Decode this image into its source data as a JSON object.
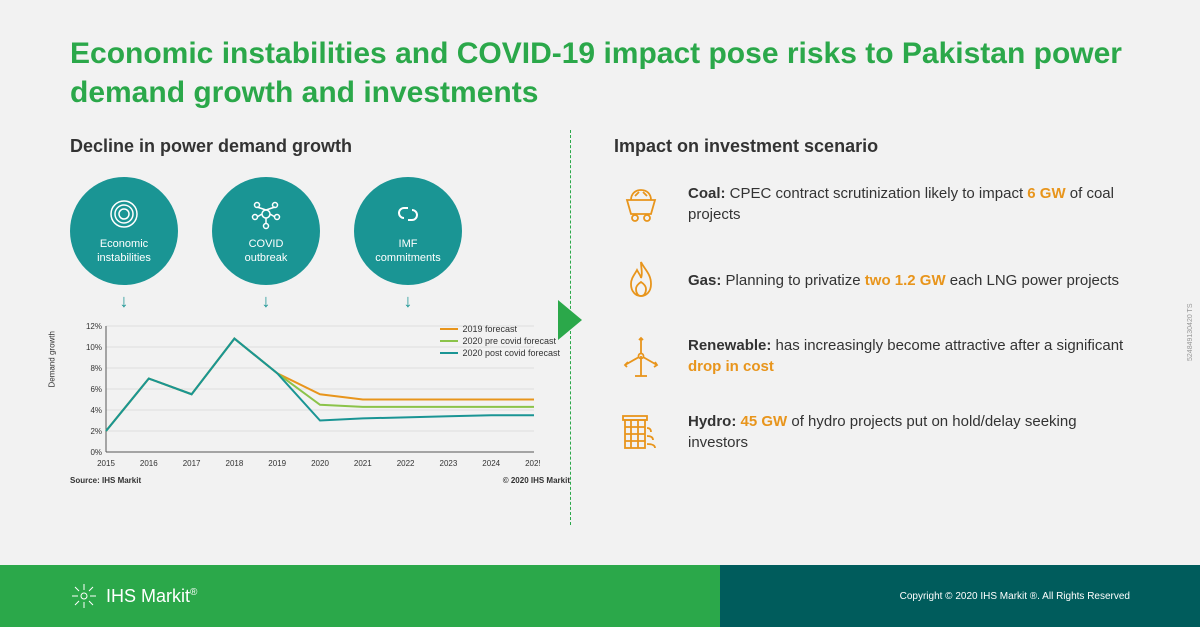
{
  "title": "Economic instabilities and COVID-19 impact pose risks to Pakistan power demand growth and investments",
  "left": {
    "subtitle": "Decline in power demand growth",
    "circles": [
      {
        "label": "Economic\ninstabilities"
      },
      {
        "label": "COVID\noutbreak"
      },
      {
        "label": "IMF\ncommitments"
      }
    ],
    "chart": {
      "type": "line",
      "ylabel": "Demand growth",
      "xlabels": [
        "2015",
        "2016",
        "2017",
        "2018",
        "2019",
        "2020",
        "2021",
        "2022",
        "2023",
        "2024",
        "2025"
      ],
      "ylabels": [
        "0%",
        "2%",
        "4%",
        "6%",
        "8%",
        "10%",
        "12%"
      ],
      "ylim": [
        0,
        12
      ],
      "series": [
        {
          "name": "2019 forecast",
          "color": "#e8951c",
          "width": 2,
          "data": [
            2,
            7,
            5.5,
            10.8,
            7.5,
            5.5,
            5,
            5,
            5,
            5,
            5
          ]
        },
        {
          "name": "2020 pre covid forecast",
          "color": "#8bc34a",
          "width": 2,
          "data": [
            2,
            7,
            5.5,
            10.8,
            7.5,
            4.5,
            4.3,
            4.3,
            4.3,
            4.3,
            4.3
          ]
        },
        {
          "name": "2020 post covid forecast",
          "color": "#1a9594",
          "width": 2,
          "data": [
            2,
            7,
            5.5,
            10.8,
            7.5,
            3,
            3.2,
            3.3,
            3.4,
            3.5,
            3.5
          ]
        }
      ],
      "source_left": "Source: IHS Markit",
      "source_right": "© 2020 IHS Markit",
      "grid_color": "#cccccc",
      "axis_color": "#555555",
      "label_fontsize": 8
    }
  },
  "right": {
    "subtitle": "Impact on investment scenario",
    "items": [
      {
        "icon": "coal",
        "label": "Coal:",
        "text_pre": " CPEC contract scrutinization likely to impact ",
        "hl": "6 GW",
        "text_post": " of coal projects"
      },
      {
        "icon": "gas",
        "label": "Gas:",
        "text_pre": " Planning to privatize ",
        "hl": "two 1.2 GW",
        "text_post": " each LNG power projects"
      },
      {
        "icon": "renewable",
        "label": "Renewable:",
        "text_pre": " has increasingly become attractive after a significant ",
        "hl": "drop in cost",
        "text_post": ""
      },
      {
        "icon": "hydro",
        "label": "Hydro:",
        "text_pre": " ",
        "hl": "45 GW",
        "text_post": " of hydro projects put on hold/delay seeking investors"
      }
    ]
  },
  "footer": {
    "logo": "IHS Markit",
    "copyright": "Copyright © 2020 IHS Markit ®. All Rights Reserved"
  },
  "colors": {
    "brand_green": "#2ba84a",
    "teal": "#1a9594",
    "orange": "#e8951c",
    "dark_teal": "#005c5c"
  },
  "sidecode": "524849130420 TS"
}
